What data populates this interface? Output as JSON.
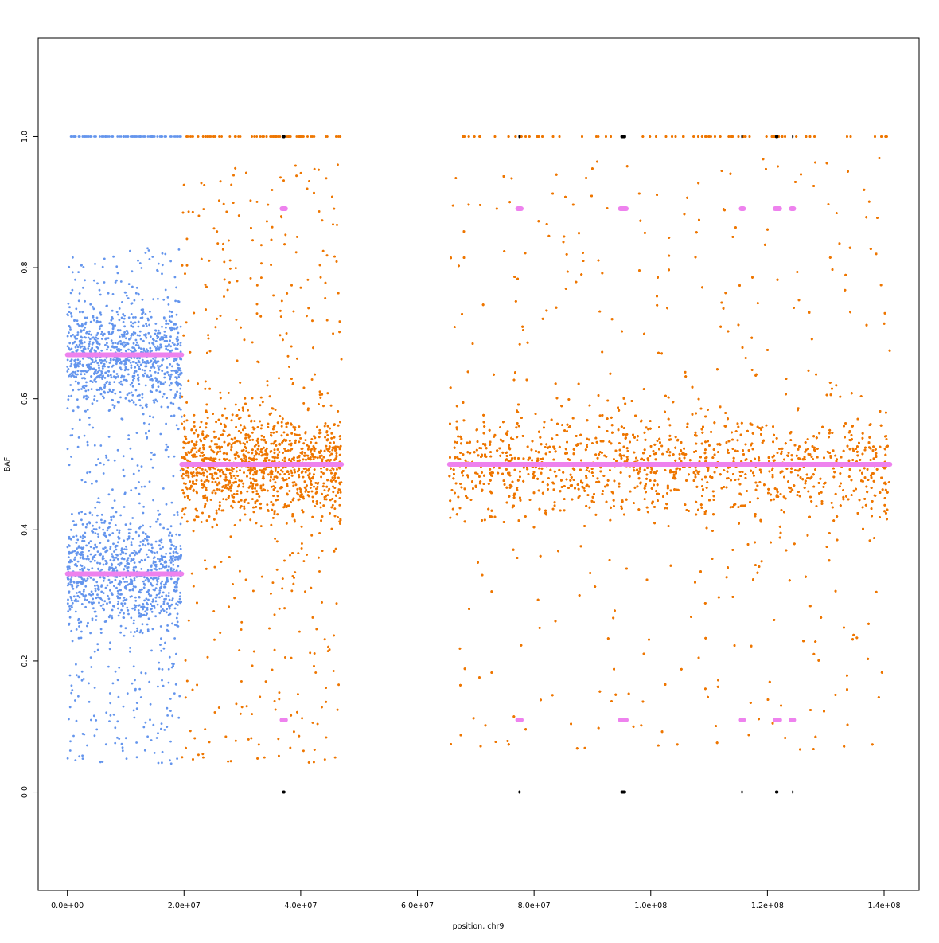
{
  "chart_data": {
    "type": "scatter",
    "title": "",
    "xlabel": "position, chr9",
    "ylabel": "BAF",
    "xlim": [
      -5000000,
      146000000
    ],
    "ylim": [
      -0.15,
      1.15
    ],
    "x_ticks": [
      0,
      20000000,
      40000000,
      60000000,
      80000000,
      100000000,
      120000000,
      140000000
    ],
    "x_tick_labels": [
      "0.0e+00",
      "2.0e+07",
      "4.0e+07",
      "6.0e+07",
      "8.0e+07",
      "1.0e+08",
      "1.2e+08",
      "1.4e+08"
    ],
    "y_ticks": [
      0.0,
      0.2,
      0.4,
      0.6,
      0.8,
      1.0
    ],
    "y_tick_labels": [
      "0.0",
      "0.2",
      "0.4",
      "0.6",
      "0.8",
      "1.0"
    ],
    "grid": false,
    "legend": "none",
    "colors": {
      "loh_region": "#6495ed",
      "normal_region": "#ee7600",
      "segment_mean": "#ee82ee",
      "homozygous_marker": "#000000"
    },
    "regions": [
      {
        "start": 0,
        "end": 19600000,
        "color_key": "loh_region",
        "baf_bands": [
          0.333,
          0.667
        ],
        "baf_min": 0.04,
        "baf_max": 0.83
      },
      {
        "start": 19600000,
        "end": 47000000,
        "color_key": "normal_region",
        "baf_bands": [
          0.5
        ],
        "baf_min": 0.04,
        "baf_max": 0.96
      },
      {
        "start": 65500000,
        "end": 141000000,
        "color_key": "normal_region",
        "baf_bands": [
          0.5
        ],
        "baf_min": 0.06,
        "baf_max": 0.97
      }
    ],
    "segments": [
      {
        "x_start": 0,
        "x_end": 19600000,
        "y": 0.667
      },
      {
        "x_start": 0,
        "x_end": 19600000,
        "y": 0.333
      },
      {
        "x_start": 19600000,
        "x_end": 47000000,
        "y": 0.5
      },
      {
        "x_start": 65500000,
        "x_end": 95000000,
        "y": 0.5
      },
      {
        "x_start": 95500000,
        "x_end": 141000000,
        "y": 0.5
      },
      {
        "x_start": 36800000,
        "x_end": 37400000,
        "y": 0.89
      },
      {
        "x_start": 36800000,
        "x_end": 37400000,
        "y": 0.11
      },
      {
        "x_start": 77200000,
        "x_end": 77800000,
        "y": 0.89
      },
      {
        "x_start": 77200000,
        "x_end": 77800000,
        "y": 0.11
      },
      {
        "x_start": 94800000,
        "x_end": 95800000,
        "y": 0.89
      },
      {
        "x_start": 94800000,
        "x_end": 95800000,
        "y": 0.11
      },
      {
        "x_start": 115500000,
        "x_end": 115900000,
        "y": 0.89
      },
      {
        "x_start": 115500000,
        "x_end": 115900000,
        "y": 0.11
      },
      {
        "x_start": 121300000,
        "x_end": 122100000,
        "y": 0.89
      },
      {
        "x_start": 121300000,
        "x_end": 122100000,
        "y": 0.11
      },
      {
        "x_start": 124100000,
        "x_end": 124500000,
        "y": 0.89
      },
      {
        "x_start": 124100000,
        "x_end": 124500000,
        "y": 0.11
      }
    ],
    "homozygous_clusters": [
      {
        "x_start": 36800000,
        "x_end": 37400000
      },
      {
        "x_start": 77300000,
        "x_end": 77700000
      },
      {
        "x_start": 94800000,
        "x_end": 95800000
      },
      {
        "x_start": 115500000,
        "x_end": 115800000
      },
      {
        "x_start": 121300000,
        "x_end": 121900000
      },
      {
        "x_start": 124200000,
        "x_end": 124400000
      }
    ]
  }
}
